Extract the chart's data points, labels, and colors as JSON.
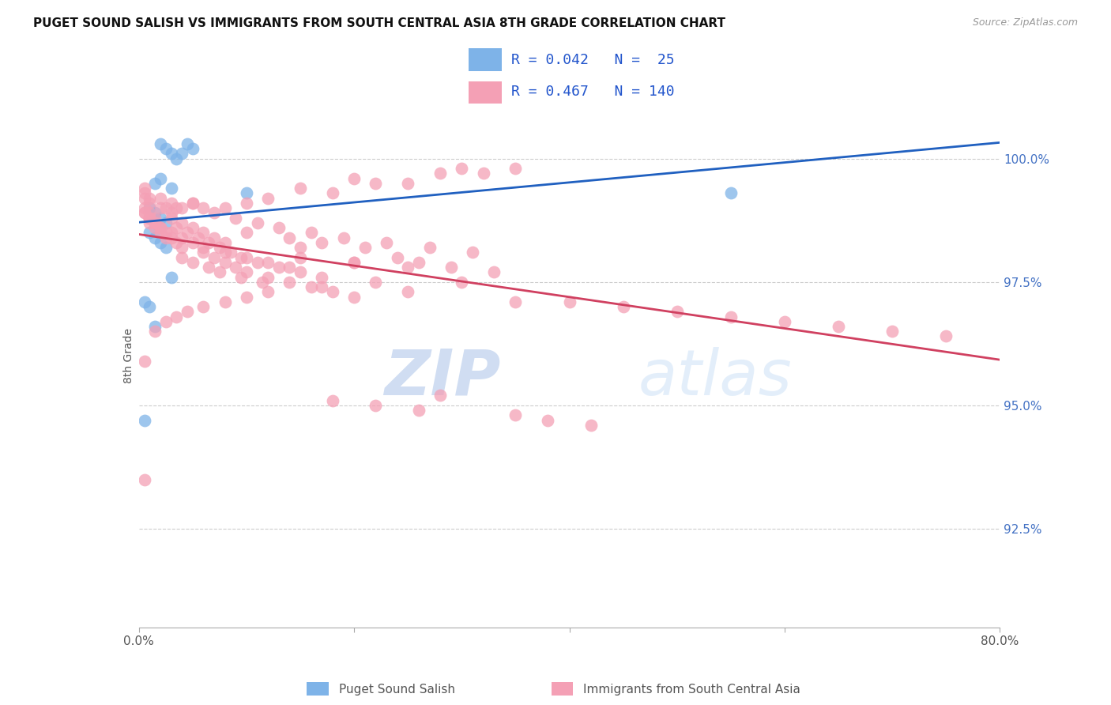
{
  "title": "PUGET SOUND SALISH VS IMMIGRANTS FROM SOUTH CENTRAL ASIA 8TH GRADE CORRELATION CHART",
  "source": "Source: ZipAtlas.com",
  "ylabel": "8th Grade",
  "ylabel_right_ticks": [
    100.0,
    97.5,
    95.0,
    92.5
  ],
  "ylabel_right_labels": [
    "100.0%",
    "97.5%",
    "95.0%",
    "92.5%"
  ],
  "xlim": [
    0.0,
    80.0
  ],
  "ylim": [
    90.5,
    101.5
  ],
  "blue_R": 0.042,
  "blue_N": 25,
  "pink_R": 0.467,
  "pink_N": 140,
  "legend_label_blue": "Puget Sound Salish",
  "legend_label_pink": "Immigrants from South Central Asia",
  "watermark_zip": "ZIP",
  "watermark_atlas": "atlas",
  "blue_color": "#7EB3E8",
  "pink_color": "#F4A0B5",
  "blue_line_color": "#2060C0",
  "pink_line_color": "#D04060",
  "blue_scatter_x": [
    2.0,
    2.5,
    3.0,
    3.5,
    4.0,
    4.5,
    5.0,
    1.5,
    2.0,
    3.0,
    10.0,
    1.0,
    1.5,
    2.0,
    2.5,
    1.0,
    1.5,
    2.0,
    2.5,
    3.0,
    55.0,
    0.5,
    1.0,
    1.5,
    0.5
  ],
  "blue_scatter_y": [
    100.3,
    100.2,
    100.1,
    100.0,
    100.1,
    100.3,
    100.2,
    99.5,
    99.6,
    99.4,
    99.3,
    99.0,
    98.9,
    98.8,
    98.7,
    98.5,
    98.4,
    98.3,
    98.2,
    97.6,
    99.3,
    97.1,
    97.0,
    96.6,
    94.7
  ],
  "pink_scatter_x": [
    30.0,
    32.0,
    28.0,
    35.0,
    20.0,
    22.0,
    25.0,
    15.0,
    18.0,
    12.0,
    10.0,
    8.0,
    6.0,
    5.0,
    4.0,
    3.0,
    3.5,
    2.5,
    2.0,
    7.0,
    9.0,
    11.0,
    13.0,
    16.0,
    19.0,
    23.0,
    27.0,
    31.0,
    14.0,
    17.0,
    21.0,
    24.0,
    26.0,
    29.0,
    33.0,
    6.0,
    8.0,
    10.0,
    12.0,
    14.0,
    4.0,
    5.0,
    6.5,
    7.5,
    9.5,
    11.5,
    3.0,
    4.0,
    5.0,
    6.0,
    7.0,
    8.0,
    9.0,
    10.0,
    12.0,
    14.0,
    16.0,
    18.0,
    20.0,
    3.5,
    4.5,
    5.5,
    6.5,
    7.5,
    8.5,
    9.5,
    11.0,
    13.0,
    15.0,
    17.0,
    1.0,
    1.5,
    2.0,
    2.5,
    1.0,
    1.5,
    2.0,
    0.5,
    1.0,
    40.0,
    45.0,
    50.0,
    55.0,
    60.0,
    65.0,
    70.0,
    75.0,
    0.5,
    1.0,
    1.5,
    2.0,
    2.5,
    3.0,
    3.5,
    4.0,
    3.0,
    4.0,
    5.0,
    6.0,
    7.0,
    8.0,
    15.0,
    20.0,
    25.0,
    22.0,
    17.0,
    12.0,
    10.0,
    8.0,
    6.0,
    4.5,
    3.5,
    2.5,
    1.5,
    0.5,
    0.5,
    28.0,
    18.0,
    22.0,
    26.0,
    35.0,
    38.0,
    42.0,
    0.5,
    1.0,
    1.5,
    10.0,
    15.0,
    20.0,
    5.0,
    30.0,
    25.0,
    35.0,
    0.5,
    1.0,
    2.0,
    3.0,
    0.5,
    1.0,
    0.5
  ],
  "pink_scatter_y": [
    99.8,
    99.7,
    99.7,
    99.8,
    99.6,
    99.5,
    99.5,
    99.4,
    99.3,
    99.2,
    99.1,
    99.0,
    99.0,
    99.1,
    99.0,
    99.1,
    99.0,
    99.0,
    99.2,
    98.9,
    98.8,
    98.7,
    98.6,
    98.5,
    98.4,
    98.3,
    98.2,
    98.1,
    98.4,
    98.3,
    98.2,
    98.0,
    97.9,
    97.8,
    97.7,
    98.2,
    98.1,
    98.0,
    97.9,
    97.8,
    98.0,
    97.9,
    97.8,
    97.7,
    97.6,
    97.5,
    98.5,
    98.4,
    98.3,
    98.1,
    98.0,
    97.9,
    97.8,
    97.7,
    97.6,
    97.5,
    97.4,
    97.3,
    97.2,
    98.6,
    98.5,
    98.4,
    98.3,
    98.2,
    98.1,
    98.0,
    97.9,
    97.8,
    97.7,
    97.6,
    98.7,
    98.6,
    98.5,
    98.4,
    98.8,
    98.7,
    98.6,
    98.9,
    98.8,
    97.1,
    97.0,
    96.9,
    96.8,
    96.7,
    96.6,
    96.5,
    96.4,
    98.9,
    98.8,
    98.7,
    98.6,
    98.5,
    98.4,
    98.3,
    98.2,
    98.8,
    98.7,
    98.6,
    98.5,
    98.4,
    98.3,
    98.0,
    97.9,
    97.8,
    97.5,
    97.4,
    97.3,
    97.2,
    97.1,
    97.0,
    96.9,
    96.8,
    96.7,
    96.5,
    95.9,
    93.5,
    95.2,
    95.1,
    95.0,
    94.9,
    94.8,
    94.7,
    94.6,
    99.0,
    98.9,
    98.8,
    98.5,
    98.2,
    97.9,
    99.1,
    97.5,
    97.3,
    97.1,
    99.2,
    99.1,
    99.0,
    98.9,
    99.3,
    99.2,
    99.4
  ]
}
